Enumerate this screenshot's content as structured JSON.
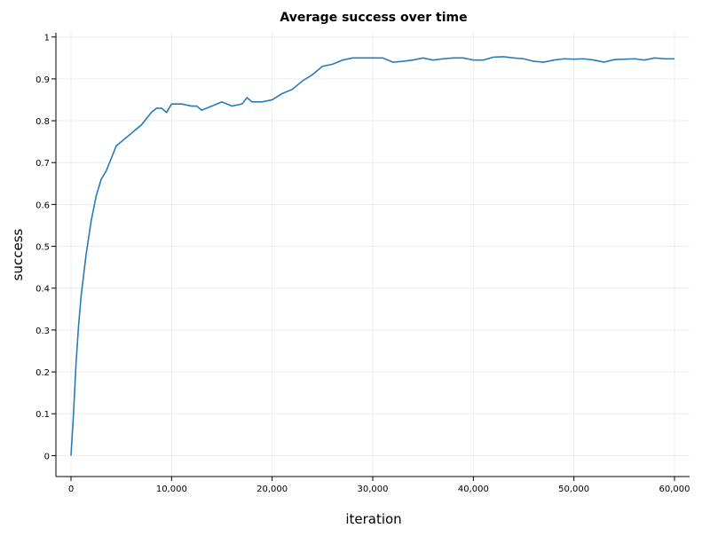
{
  "chart_data": {
    "type": "line",
    "title": "Average success over time",
    "x_label": "iteration",
    "y_label": "success",
    "x": [
      0,
      250,
      500,
      750,
      1000,
      1500,
      2000,
      2500,
      3000,
      3500,
      4000,
      4500,
      5000,
      6000,
      7000,
      8000,
      8500,
      9000,
      9500,
      10000,
      11000,
      12000,
      12500,
      13000,
      14000,
      15000,
      16000,
      17000,
      17500,
      18000,
      19000,
      20000,
      21000,
      22000,
      23000,
      24000,
      25000,
      26000,
      27000,
      28000,
      29000,
      30000,
      31000,
      32000,
      33000,
      34000,
      35000,
      36000,
      37000,
      38000,
      39000,
      40000,
      41000,
      42000,
      43000,
      44000,
      45000,
      46000,
      47000,
      48000,
      49000,
      50000,
      51000,
      52000,
      53000,
      54000,
      55000,
      56000,
      57000,
      58000,
      59000,
      60000
    ],
    "values": [
      0,
      0.1,
      0.22,
      0.31,
      0.38,
      0.48,
      0.56,
      0.62,
      0.66,
      0.68,
      0.71,
      0.74,
      0.75,
      0.77,
      0.79,
      0.82,
      0.83,
      0.83,
      0.82,
      0.84,
      0.84,
      0.835,
      0.835,
      0.825,
      0.835,
      0.845,
      0.835,
      0.84,
      0.855,
      0.845,
      0.845,
      0.85,
      0.865,
      0.875,
      0.895,
      0.91,
      0.93,
      0.935,
      0.945,
      0.95,
      0.95,
      0.95,
      0.95,
      0.94,
      0.942,
      0.945,
      0.95,
      0.945,
      0.948,
      0.95,
      0.95,
      0.945,
      0.945,
      0.952,
      0.953,
      0.95,
      0.948,
      0.942,
      0.94,
      0.945,
      0.948,
      0.947,
      0.948,
      0.945,
      0.94,
      0.946,
      0.947,
      0.948,
      0.945,
      0.95,
      0.948,
      0.948
    ],
    "color": "#2a7ab8",
    "xlim": [
      -1500,
      61500
    ],
    "ylim": [
      -0.05,
      1.01
    ],
    "xticks": [
      0,
      {
        "value": 10000,
        "label": "10,000"
      },
      {
        "value": 20000,
        "label": "20,000"
      },
      {
        "value": 30000,
        "label": "30,000"
      },
      {
        "value": 40000,
        "label": "40,000"
      },
      {
        "value": 50000,
        "label": "50,000"
      },
      {
        "value": 60000,
        "label": "60,000"
      }
    ],
    "yticks": [
      0,
      0.1,
      0.2,
      0.3,
      0.4,
      0.5,
      0.6,
      0.7,
      0.8,
      0.9,
      1
    ],
    "grid": true
  }
}
